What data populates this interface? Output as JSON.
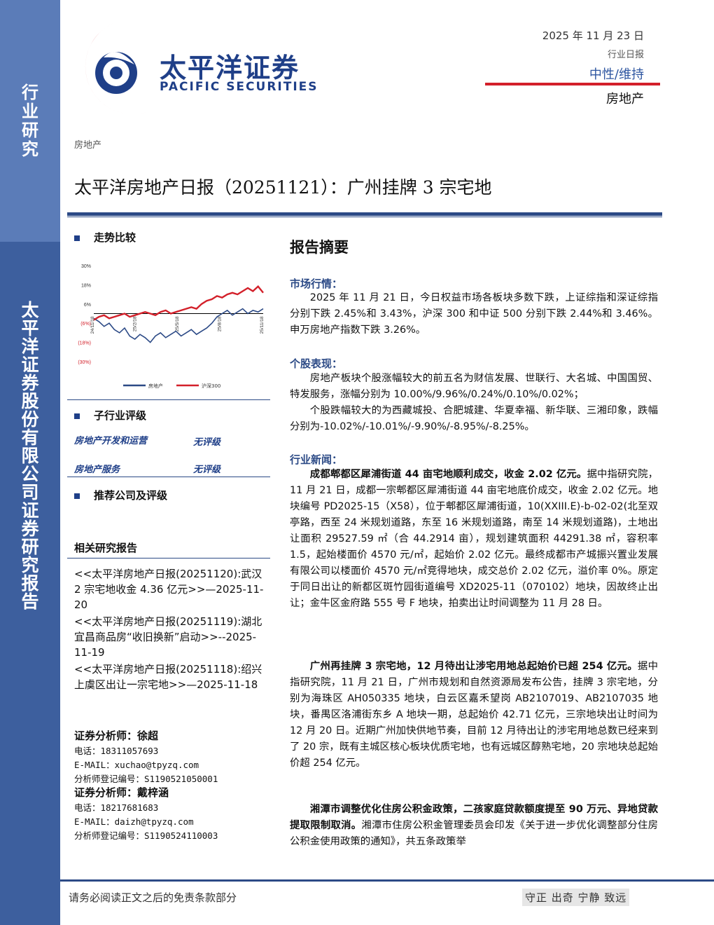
{
  "sidebar": {
    "small_label": "行业研究",
    "big_label": "太平洋证券股份有限公司证券研究报告"
  },
  "header": {
    "brand_cn": "太平洋证券",
    "brand_en": "PACIFIC SECURITIES",
    "date": "2025 年 11 月 23 日",
    "report_type": "行业日报",
    "rating": "中性/维持",
    "sector": "房地产"
  },
  "sector_tag": "房地产",
  "title": "太平洋房地产日报（20251121）：广州挂牌 3 宗宅地",
  "left": {
    "trend_heading": "走势比较",
    "sub_industry_heading": "子行业评级",
    "ratings": [
      {
        "name": "房地产开发和运营",
        "rating": "无评级"
      },
      {
        "name": "房地产服务",
        "rating": "无评级"
      }
    ],
    "recommend_heading": "推荐公司及评级",
    "related_heading": "相关研究报告",
    "related": [
      "<<太平洋房地产日报(20251120):武汉 2 宗宅地收金 4.36 亿元>>—2025-11-20",
      "<<太平洋房地产日报(20251119):湖北宜昌商品房“收旧换新”启动>>--2025-11-19",
      "<<太平洋房地产日报(20251118):绍兴上虞区出让一宗宅地>>—2025-11-18"
    ],
    "analysts": [
      {
        "title": "证券分析师：徐超",
        "phone": "电话：18311057693",
        "email": "E-MAIL：xuchao@tpyzq.com",
        "reg": "分析师登记编号：S1190521050001"
      },
      {
        "title": "证券分析师：戴梓涵",
        "phone": "电话：18217681683",
        "email": "E-MAIL：daizh@tpyzq.com",
        "reg": "分析师登记编号：S1190524110003"
      }
    ]
  },
  "chart_data": {
    "type": "line",
    "ylim": [
      -30,
      30
    ],
    "y_ticks": [
      "30%",
      "18%",
      "6%",
      "(6%)",
      "(18%)",
      "(30%)"
    ],
    "x_ticks": [
      "24/11/18",
      "25/2/18",
      "25/5/18",
      "25/8/18",
      "25/11/18"
    ],
    "series": [
      {
        "name": "房地产",
        "color": "#2c4a86",
        "values": [
          -3,
          -5,
          -8,
          -6,
          -10,
          -12,
          -9,
          -14,
          -16,
          -13,
          -15,
          -18,
          -14,
          -12,
          -15,
          -13,
          -11,
          -14,
          -12,
          -10,
          -13,
          -11,
          -9,
          -6,
          -2,
          0,
          2,
          -1,
          1,
          3,
          0,
          2,
          1,
          3
        ]
      },
      {
        "name": "沪深300",
        "color": "#d3202a",
        "values": [
          -4,
          -2,
          -1,
          -3,
          -2,
          -1,
          0,
          -2,
          -1,
          0,
          1,
          0,
          -1,
          1,
          2,
          0,
          1,
          2,
          3,
          4,
          3,
          6,
          8,
          9,
          11,
          10,
          12,
          13,
          12,
          14,
          16,
          14,
          17,
          13
        ]
      }
    ]
  },
  "right": {
    "abstract_heading": "报告摘要",
    "market_heading": "市场行情：",
    "market_text": "2025 年 11 月 21 日，今日权益市场各板块多数下跌，上证综指和深证综指分别下跌 2.45%和 3.43%，沪深 300 和中证 500 分别下跌 2.44%和 3.46%。申万房地产指数下跌 3.26%。",
    "stock_heading": "个股表现：",
    "stock_text1": "房地产板块个股涨幅较大的前五名为财信发展、世联行、大名城、中国国贸、特发服务，涨幅分别为 10.00%/9.96%/0.24%/0.10%/0.02%；",
    "stock_text2": "个股跌幅较大的为西藏城投、合肥城建、华夏幸福、新华联、三湘印象，跌幅分别为-10.02%/-10.01%/-9.90%/-8.95%/-8.25%。",
    "news_heading": "行业新闻：",
    "news1_bold": "成都郫都区犀浦街道 44 亩宅地顺利成交，收金 2.02 亿元。",
    "news1_text": "据中指研究院，11 月 21 日，成都一宗郫都区犀浦街道 44 亩宅地底价成交，收金 2.02 亿元。地块编号 PD2025-15（X58），位于郫都区犀浦街道，10(XXIII.E)-b-02-02(北至双亭路，西至 24 米规划道路，东至 16 米规划道路，南至 14 米规划道路)，土地出让面积 29527.59 ㎡（合 44.2914 亩），规划建筑面积 44291.38 ㎡，容积率 1.5，起始楼面价 4570 元/㎡，起始价 2.02 亿元。最终成都市产城振兴置业发展有限公司以楼面价 4570 元/㎡竞得地块，成交总价 2.02 亿元，溢价率 0%。原定于同日出让的新都区斑竹园街道编号 XD2025-11（070102）地块，因故终止出让；金牛区金府路 555 号 F 地块，拍卖出让时间调整为 11 月 28 日。",
    "news2_bold": "广州再挂牌 3 宗宅地，12 月待出让涉宅用地总起始价已超 254 亿元。",
    "news2_text": "据中指研究院，11 月 21 日，广州市规划和自然资源局发布公告，挂牌 3 宗宅地，分别为海珠区 AH050335 地块，白云区嘉禾望岗 AB2107019、AB2107035 地块，番禺区洛浦街东乡 A 地块一期，总起始价 42.71 亿元，三宗地块出让时间为 12 月 20 日。近期广州加快供地节奏，目前 12 月待出让的涉宅用地总数已经来到了 20 宗，既有主城区核心板块优质宅地，也有远城区醇熟宅地，20 宗地块总起始价超 254 亿元。",
    "news3_bold": "湘潭市调整优化住房公积金政策，二孩家庭贷款额度提至 90 万元、异地贷款提取限制取消。",
    "news3_text": "湘潭市住房公积金管理委员会印发《关于进一步优化调整部分住房公积金使用政策的通知》，共五条政策举"
  },
  "footer": {
    "disclaimer": "请务必阅读正文之后的免责条款部分",
    "motto": "守正 出奇 宁静 致远"
  }
}
